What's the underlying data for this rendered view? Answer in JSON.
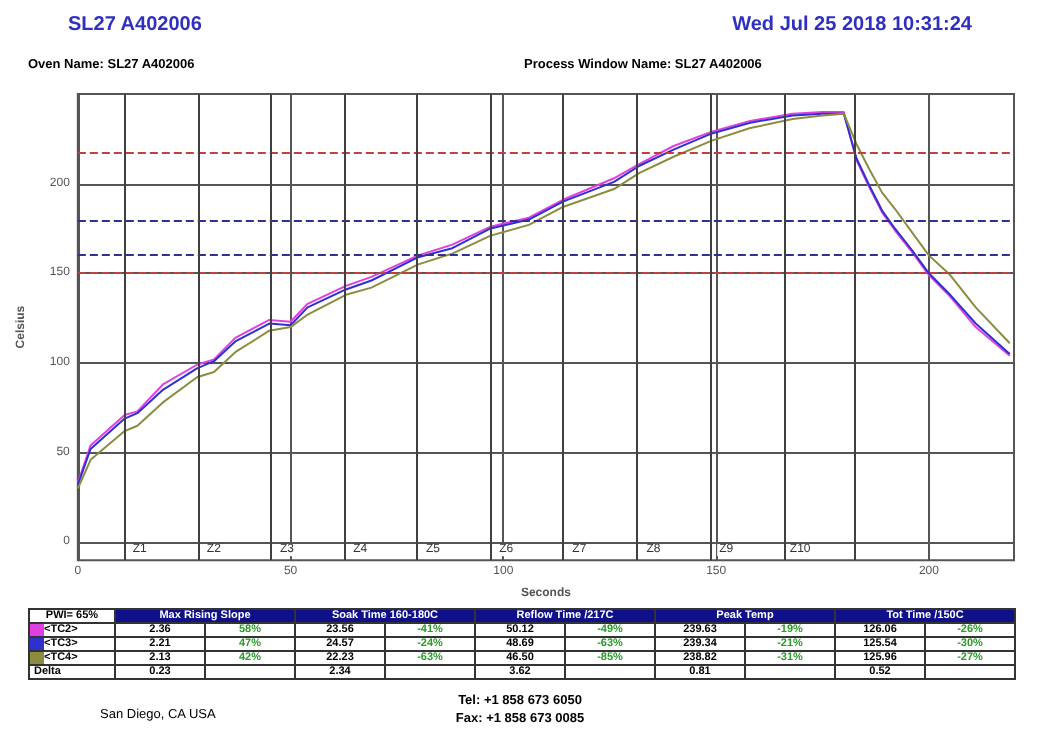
{
  "chart_data": [
    {
      "type": "line",
      "title": "SL27 A402006",
      "subtitle": "Wed Jul 25 2018 10:31:24",
      "xlabel": "Seconds",
      "ylabel": "Celsius",
      "annotations": [
        "Oven Name:  SL27 A402006",
        "Process Window Name:  SL27 A402006",
        "San Diego, CA USA",
        "Tel: +1 858 673 6050",
        "Fax: +1 858 673 0085"
      ],
      "x": [
        0,
        3,
        11,
        14,
        20,
        28,
        32,
        37,
        45,
        50,
        54,
        63,
        69,
        80,
        88,
        97,
        106,
        114,
        126,
        132,
        140,
        149,
        158,
        168,
        175,
        180,
        183,
        186,
        189,
        192,
        196,
        200,
        205,
        211,
        219
      ],
      "series": [
        {
          "color": "#e040e0",
          "values": [
            33,
            54,
            71,
            73,
            88,
            99,
            102,
            114,
            124,
            123,
            133,
            143,
            148,
            160,
            166,
            176,
            181,
            191,
            203,
            211,
            221,
            229,
            235,
            239,
            240,
            240,
            213,
            198,
            184,
            174,
            162,
            149,
            137,
            120,
            104
          ]
        },
        {
          "color": "#3030d0",
          "values": [
            32,
            52,
            69,
            72,
            85,
            97,
            101,
            112,
            122,
            121,
            131,
            141,
            146,
            159,
            164,
            175,
            180,
            190,
            201,
            210,
            219,
            228,
            234,
            238,
            239,
            239,
            214,
            199,
            185,
            175,
            163,
            150,
            138,
            122,
            105
          ]
        },
        {
          "color": "#8c8c40",
          "values": [
            30,
            46,
            62,
            65,
            78,
            92,
            95,
            106,
            118,
            120,
            127,
            138,
            142,
            155,
            161,
            171,
            177,
            187,
            197,
            206,
            215,
            224,
            231,
            236,
            238,
            239,
            222,
            208,
            195,
            186,
            173,
            160,
            149,
            131,
            111
          ]
        }
      ],
      "xlim": [
        0,
        220
      ],
      "xticks": [
        0,
        50,
        100,
        150,
        200
      ],
      "ylim": [
        -10,
        250
      ],
      "yticks": [
        0,
        50,
        100,
        150,
        200
      ],
      "grid": true,
      "marker": "none",
      "line_style": "solid",
      "ref_lines": [
        {
          "axis": "y",
          "value": 217,
          "color": "#c04040",
          "line_style": "dashed"
        },
        {
          "axis": "y",
          "value": 180,
          "color": "#303090",
          "line_style": "dashed"
        },
        {
          "axis": "y",
          "value": 160,
          "color": "#303090",
          "line_style": "dashed"
        },
        {
          "axis": "y",
          "value": 150,
          "color": "#c04040",
          "line_style": "dashed"
        },
        {
          "axis": "x",
          "value": 10.8,
          "label": "Z1",
          "color": "#404040",
          "line_style": "solid"
        },
        {
          "axis": "x",
          "value": 28.2,
          "label": "Z2",
          "color": "#404040",
          "line_style": "solid"
        },
        {
          "axis": "x",
          "value": 45.4,
          "label": "Z3",
          "color": "#404040",
          "line_style": "solid"
        },
        {
          "axis": "x",
          "value": 62.6,
          "label": "Z4",
          "color": "#404040",
          "line_style": "solid"
        },
        {
          "axis": "x",
          "value": 79.7,
          "label": "Z5",
          "color": "#404040",
          "line_style": "solid"
        },
        {
          "axis": "x",
          "value": 96.9,
          "label": "Z6",
          "color": "#404040",
          "line_style": "solid"
        },
        {
          "axis": "x",
          "value": 114.1,
          "label": "Z7",
          "color": "#404040",
          "line_style": "solid"
        },
        {
          "axis": "x",
          "value": 131.5,
          "label": "Z8",
          "color": "#404040",
          "line_style": "solid"
        },
        {
          "axis": "x",
          "value": 148.6,
          "label": "Z9",
          "color": "#404040",
          "line_style": "solid"
        },
        {
          "axis": "x",
          "value": 166,
          "label": "Z10",
          "color": "#404040",
          "line_style": "solid"
        },
        {
          "axis": "x",
          "value": 182.7,
          "color": "#404040",
          "line_style": "solid"
        }
      ]
    },
    {
      "type": "other",
      "legend_title": "PWI= 65%",
      "categories": [
        "Max Rising Slope",
        null,
        "Soak Time 160-180C",
        null,
        "Reflow Time /217C",
        null,
        "Peak Temp",
        null,
        "Tot Time /150C",
        null
      ],
      "y_categories": [
        "<TC2>",
        "<TC3>",
        "<TC4>",
        "Delta"
      ],
      "cell_labels": [
        [
          "2.36",
          "58%",
          "23.56",
          "-41%",
          "50.12",
          "-49%",
          "239.63",
          "-19%",
          "126.06",
          "-26%"
        ],
        [
          "2.21",
          "47%",
          "24.57",
          "-24%",
          "48.69",
          "-63%",
          "239.34",
          "-21%",
          "125.54",
          "-30%"
        ],
        [
          "2.13",
          "42%",
          "22.23",
          "-63%",
          "46.50",
          "-85%",
          "238.82",
          "-31%",
          "125.96",
          "-27%"
        ],
        [
          "0.23",
          null,
          "2.34",
          null,
          "3.62",
          null,
          "0.81",
          null,
          "0.52",
          null
        ]
      ]
    }
  ]
}
